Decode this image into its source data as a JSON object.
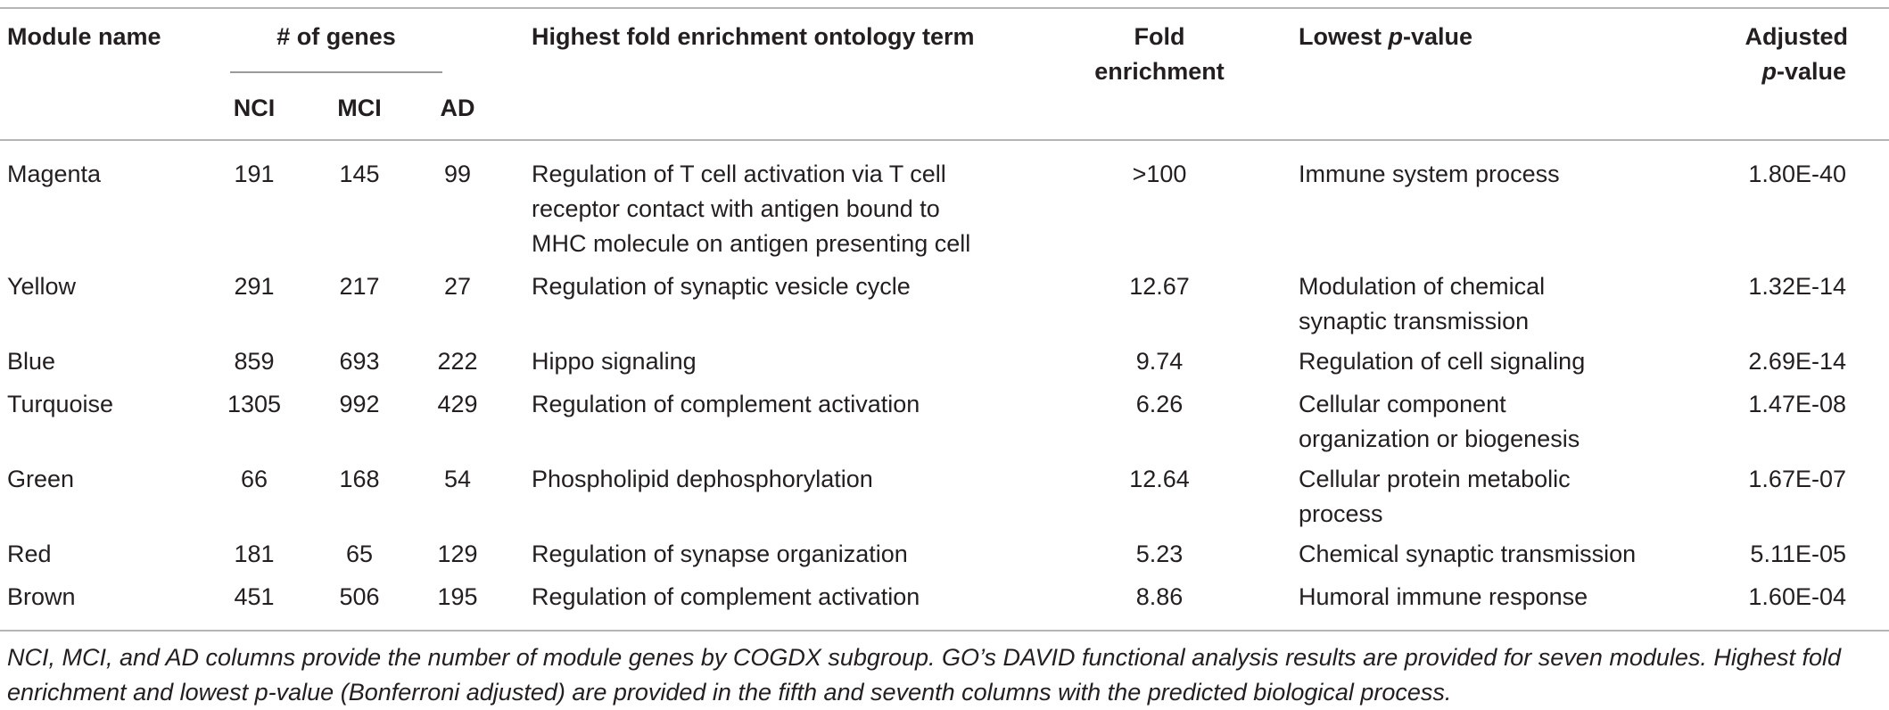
{
  "header": {
    "module_name": "Module name",
    "genes_group": "# of genes",
    "sub_nci": "NCI",
    "sub_mci": "MCI",
    "sub_ad": "AD",
    "highest_term": "Highest fold enrichment ontology term",
    "fold_line1": "Fold",
    "fold_line2": "enrichment",
    "lowest_pre": "Lowest ",
    "lowest_p": "p",
    "lowest_post": "-value",
    "adj_line1": "Adjusted",
    "adj_p": "p",
    "adj_post": "-value"
  },
  "rows": [
    {
      "module": "Magenta",
      "nci": "191",
      "mci": "145",
      "ad": "99",
      "term": [
        "Regulation of T cell activation via T cell",
        "receptor contact with antigen bound to",
        "MHC molecule on antigen presenting cell"
      ],
      "fold": ">100",
      "process": [
        "Immune system process"
      ],
      "padj": "1.80E-40"
    },
    {
      "module": "Yellow",
      "nci": "291",
      "mci": "217",
      "ad": "27",
      "term": [
        "Regulation of synaptic vesicle cycle"
      ],
      "fold": "12.67",
      "process": [
        "Modulation of chemical",
        "synaptic transmission"
      ],
      "padj": "1.32E-14"
    },
    {
      "module": "Blue",
      "nci": "859",
      "mci": "693",
      "ad": "222",
      "term": [
        "Hippo signaling"
      ],
      "fold": "9.74",
      "process": [
        "Regulation of cell signaling"
      ],
      "padj": "2.69E-14"
    },
    {
      "module": "Turquoise",
      "nci": "1305",
      "mci": "992",
      "ad": "429",
      "term": [
        "Regulation of complement activation"
      ],
      "fold": "6.26",
      "process": [
        "Cellular component",
        "organization or biogenesis"
      ],
      "padj": "1.47E-08"
    },
    {
      "module": "Green",
      "nci": "66",
      "mci": "168",
      "ad": "54",
      "term": [
        "Phospholipid dephosphorylation"
      ],
      "fold": "12.64",
      "process": [
        "Cellular protein metabolic",
        "process"
      ],
      "padj": "1.67E-07"
    },
    {
      "module": "Red",
      "nci": "181",
      "mci": "65",
      "ad": "129",
      "term": [
        "Regulation of synapse organization"
      ],
      "fold": "5.23",
      "process": [
        "Chemical synaptic transmission"
      ],
      "padj": "5.11E-05"
    },
    {
      "module": "Brown",
      "nci": "451",
      "mci": "506",
      "ad": "195",
      "term": [
        "Regulation of complement activation"
      ],
      "fold": "8.86",
      "process": [
        "Humoral immune response"
      ],
      "padj": "1.60E-04"
    }
  ],
  "footnote": "NCI, MCI, and AD columns provide the number of module genes by COGDX subgroup. GO’s DAVID functional analysis results are provided for seven modules. Highest fold enrichment and lowest p-value (Bonferroni adjusted) are provided in the fifth and seventh columns with the predicted biological process."
}
